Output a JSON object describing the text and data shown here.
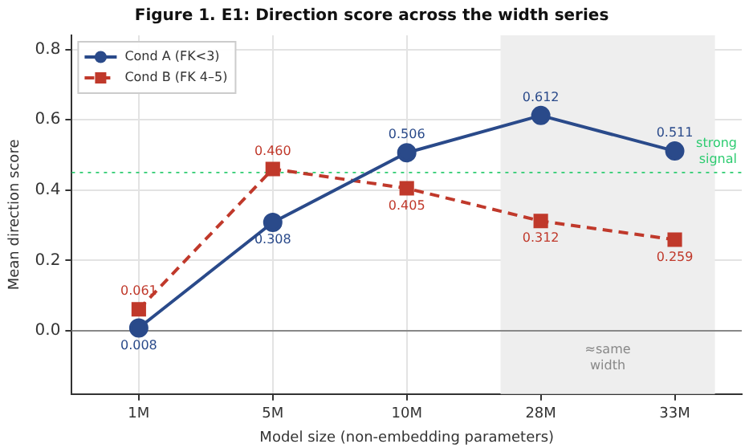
{
  "chart_data": {
    "type": "line",
    "title": "Figure 1. E1: Direction score across the width series",
    "xlabel": "Model size (non-embedding parameters)",
    "ylabel": "Mean direction score",
    "categories": [
      "1M",
      "5M",
      "10M",
      "28M",
      "33M"
    ],
    "ylim": [
      -0.18,
      0.84
    ],
    "yticks": [
      {
        "value": 0,
        "label": "0.0"
      },
      {
        "value": 0.2,
        "label": "0.2"
      },
      {
        "value": 0.4,
        "label": "0.4"
      },
      {
        "value": 0.6,
        "label": "0.6"
      },
      {
        "value": 0.8,
        "label": "0.8"
      }
    ],
    "series": [
      {
        "name": "Cond A (FK<3)",
        "color": "#2a4a8a",
        "values": [
          0.008,
          0.308,
          0.506,
          0.612,
          0.511
        ],
        "value_labels": [
          "0.008",
          "0.308",
          "0.506",
          "0.612",
          "0.511"
        ],
        "marker": "circle",
        "line_style": "solid"
      },
      {
        "name": "Cond B (FK 4–5)",
        "color": "#c0392b",
        "values": [
          0.061,
          0.46,
          0.405,
          0.312,
          0.259
        ],
        "value_labels": [
          "0.061",
          "0.460",
          "0.405",
          "0.312",
          "0.259"
        ],
        "marker": "square",
        "line_style": "dashed"
      }
    ],
    "ref_lines": [
      {
        "axis": "y",
        "value": 0.45,
        "label": "strong signal",
        "color": "#2ecc71",
        "line_style": "dotted"
      },
      {
        "axis": "y",
        "value": 0,
        "color": "#888888",
        "line_style": "solid"
      }
    ],
    "bands": [
      {
        "axis": "x",
        "from": "28M",
        "to": "33M",
        "label": "≈same width",
        "color": "#eeeeee"
      }
    ],
    "grid": true,
    "legend": "top left"
  }
}
